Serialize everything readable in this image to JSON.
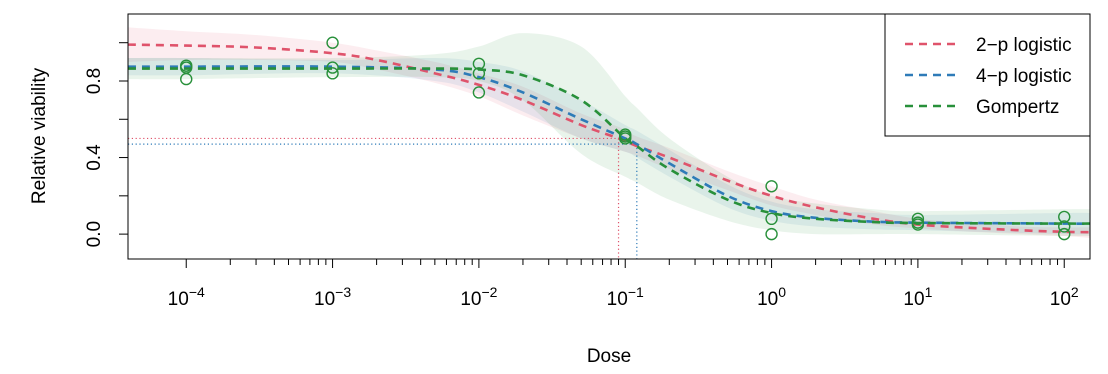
{
  "chart_data": {
    "type": "line",
    "xscale": "log10",
    "xlabel": "Dose",
    "ylabel": "Relative viability",
    "xlim": [
      4e-05,
      150
    ],
    "ylim": [
      -0.13,
      1.15
    ],
    "x_ticks": [
      {
        "base": "10",
        "exp": "−4",
        "value": 0.0001
      },
      {
        "base": "10",
        "exp": "−3",
        "value": 0.001
      },
      {
        "base": "10",
        "exp": "−2",
        "value": 0.01
      },
      {
        "base": "10",
        "exp": "−1",
        "value": 0.1
      },
      {
        "base": "10",
        "exp": "0",
        "value": 1
      },
      {
        "base": "10",
        "exp": "1",
        "value": 10
      },
      {
        "base": "10",
        "exp": "2",
        "value": 100
      }
    ],
    "y_ticks": [
      "0.0",
      "0.4",
      "0.8"
    ],
    "y_tick_values": [
      0.0,
      0.4,
      0.8
    ],
    "legend": {
      "position": "top-right",
      "entries": [
        {
          "label": "2−p logistic",
          "color": "#DF536B"
        },
        {
          "label": "4−p logistic",
          "color": "#2E7BB8"
        },
        {
          "label": "Gompertz",
          "color": "#28903A"
        }
      ]
    },
    "series": [
      {
        "name": "2−p logistic",
        "color": "#DF536B",
        "x": [
          4e-05,
          0.0001,
          0.0003,
          0.001,
          0.002,
          0.005,
          0.01,
          0.02,
          0.05,
          0.09,
          0.12,
          0.2,
          0.5,
          1,
          2,
          5,
          10,
          20,
          50,
          100,
          150
        ],
        "y": [
          0.99,
          0.985,
          0.975,
          0.945,
          0.91,
          0.84,
          0.78,
          0.7,
          0.57,
          0.5,
          0.46,
          0.4,
          0.28,
          0.2,
          0.14,
          0.08,
          0.05,
          0.035,
          0.02,
          0.012,
          0.01
        ],
        "ci_low": [
          0.9,
          0.91,
          0.91,
          0.9,
          0.86,
          0.79,
          0.72,
          0.62,
          0.5,
          0.44,
          0.41,
          0.34,
          0.23,
          0.15,
          0.1,
          0.05,
          0.03,
          0.015,
          0.0,
          -0.01,
          -0.02
        ],
        "ci_high": [
          1.08,
          1.06,
          1.04,
          1.0,
          0.96,
          0.9,
          0.84,
          0.77,
          0.63,
          0.56,
          0.51,
          0.45,
          0.33,
          0.25,
          0.18,
          0.12,
          0.08,
          0.06,
          0.04,
          0.035,
          0.035
        ],
        "ed50": 0.09
      },
      {
        "name": "4−p logistic",
        "color": "#2E7BB8",
        "x": [
          4e-05,
          0.0001,
          0.001,
          0.005,
          0.01,
          0.02,
          0.05,
          0.1,
          0.12,
          0.2,
          0.5,
          1,
          2,
          5,
          10,
          100,
          150
        ],
        "y": [
          0.875,
          0.875,
          0.875,
          0.86,
          0.82,
          0.74,
          0.6,
          0.5,
          0.47,
          0.37,
          0.2,
          0.12,
          0.085,
          0.065,
          0.06,
          0.055,
          0.055
        ],
        "ci_low": [
          0.83,
          0.83,
          0.84,
          0.8,
          0.74,
          0.64,
          0.5,
          0.43,
          0.4,
          0.3,
          0.14,
          0.07,
          0.04,
          0.025,
          0.02,
          0.0,
          0.0
        ],
        "ci_high": [
          0.92,
          0.92,
          0.91,
          0.92,
          0.9,
          0.85,
          0.7,
          0.57,
          0.54,
          0.44,
          0.26,
          0.17,
          0.13,
          0.11,
          0.1,
          0.11,
          0.11
        ],
        "ed50": 0.12
      },
      {
        "name": "Gompertz",
        "color": "#28903A",
        "x": [
          4e-05,
          0.0001,
          0.001,
          0.005,
          0.01,
          0.02,
          0.05,
          0.1,
          0.12,
          0.2,
          0.5,
          1,
          2,
          5,
          10,
          100,
          150
        ],
        "y": [
          0.865,
          0.865,
          0.865,
          0.865,
          0.86,
          0.83,
          0.7,
          0.5,
          0.46,
          0.34,
          0.18,
          0.11,
          0.08,
          0.063,
          0.058,
          0.055,
          0.055
        ],
        "ci_low": [
          0.81,
          0.81,
          0.82,
          0.82,
          0.8,
          0.7,
          0.42,
          0.3,
          0.27,
          0.18,
          0.07,
          0.02,
          0.0,
          0.0,
          0.0,
          -0.01,
          -0.01
        ],
        "ci_high": [
          0.92,
          0.92,
          0.92,
          0.94,
          0.98,
          1.05,
          0.98,
          0.72,
          0.66,
          0.5,
          0.3,
          0.2,
          0.16,
          0.13,
          0.12,
          0.13,
          0.13
        ],
        "ed50": 0.12
      }
    ],
    "observations": {
      "color": "#28903A",
      "points": [
        {
          "x": 0.0001,
          "y": 0.88
        },
        {
          "x": 0.0001,
          "y": 0.87
        },
        {
          "x": 0.0001,
          "y": 0.81
        },
        {
          "x": 0.001,
          "y": 1.0
        },
        {
          "x": 0.001,
          "y": 0.87
        },
        {
          "x": 0.001,
          "y": 0.84
        },
        {
          "x": 0.01,
          "y": 0.89
        },
        {
          "x": 0.01,
          "y": 0.84
        },
        {
          "x": 0.01,
          "y": 0.74
        },
        {
          "x": 0.1,
          "y": 0.52
        },
        {
          "x": 0.1,
          "y": 0.51
        },
        {
          "x": 0.1,
          "y": 0.5
        },
        {
          "x": 1,
          "y": 0.25
        },
        {
          "x": 1,
          "y": 0.08
        },
        {
          "x": 1,
          "y": 0.0
        },
        {
          "x": 10,
          "y": 0.08
        },
        {
          "x": 10,
          "y": 0.06
        },
        {
          "x": 10,
          "y": 0.05
        },
        {
          "x": 100,
          "y": 0.09
        },
        {
          "x": 100,
          "y": 0.04
        },
        {
          "x": 100,
          "y": 0.0
        }
      ]
    },
    "ed50_reference_lines": {
      "style": "dotted",
      "series_index": [
        0,
        1
      ]
    },
    "grid": false
  }
}
